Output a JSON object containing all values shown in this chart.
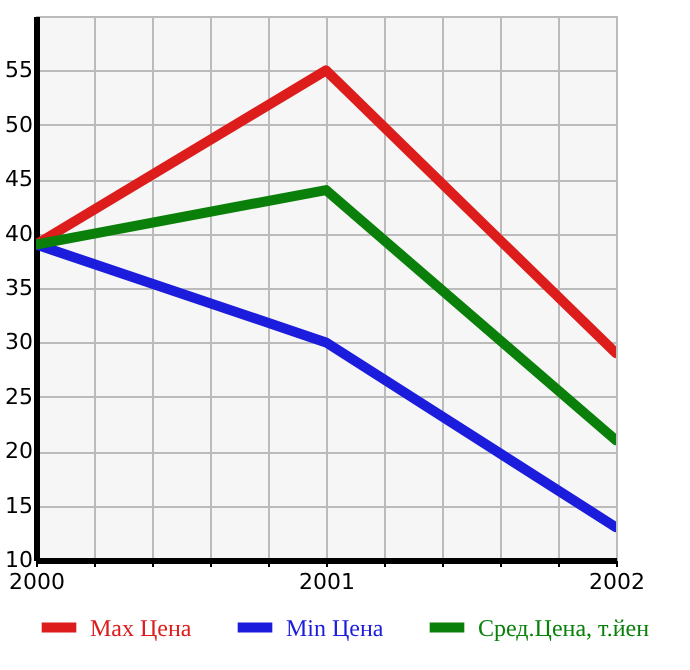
{
  "chart_data": {
    "type": "line",
    "x": [
      2000,
      2001,
      2002
    ],
    "series": [
      {
        "name": "Max Цена",
        "color": "#dd1c1c",
        "values": [
          39,
          55,
          29
        ]
      },
      {
        "name": "Min Цена",
        "color": "#1c1cdd",
        "values": [
          39,
          30,
          13
        ]
      },
      {
        "name": "Сред.Цена, т.йен",
        "color": "#0a800a",
        "values": [
          39,
          44,
          21
        ]
      }
    ],
    "xlim": [
      2000,
      2002
    ],
    "xticks": [
      2000,
      {
        "value": 2000.2,
        "label": null
      },
      {
        "value": 2000.4,
        "label": null
      },
      {
        "value": 2000.6,
        "label": null
      },
      {
        "value": 2000.8,
        "label": null
      },
      2001,
      {
        "value": 2001.2,
        "label": null
      },
      {
        "value": 2001.4,
        "label": null
      },
      {
        "value": 2001.6,
        "label": null
      },
      {
        "value": 2001.8,
        "label": null
      },
      2002
    ],
    "ylim": [
      10,
      60
    ],
    "yticks": [
      10,
      15,
      20,
      25,
      30,
      35,
      40,
      45,
      50,
      55,
      {
        "value": 60,
        "label": null
      }
    ],
    "grid": true,
    "legend": "bottom",
    "marker": "none",
    "line_style": "solid"
  }
}
